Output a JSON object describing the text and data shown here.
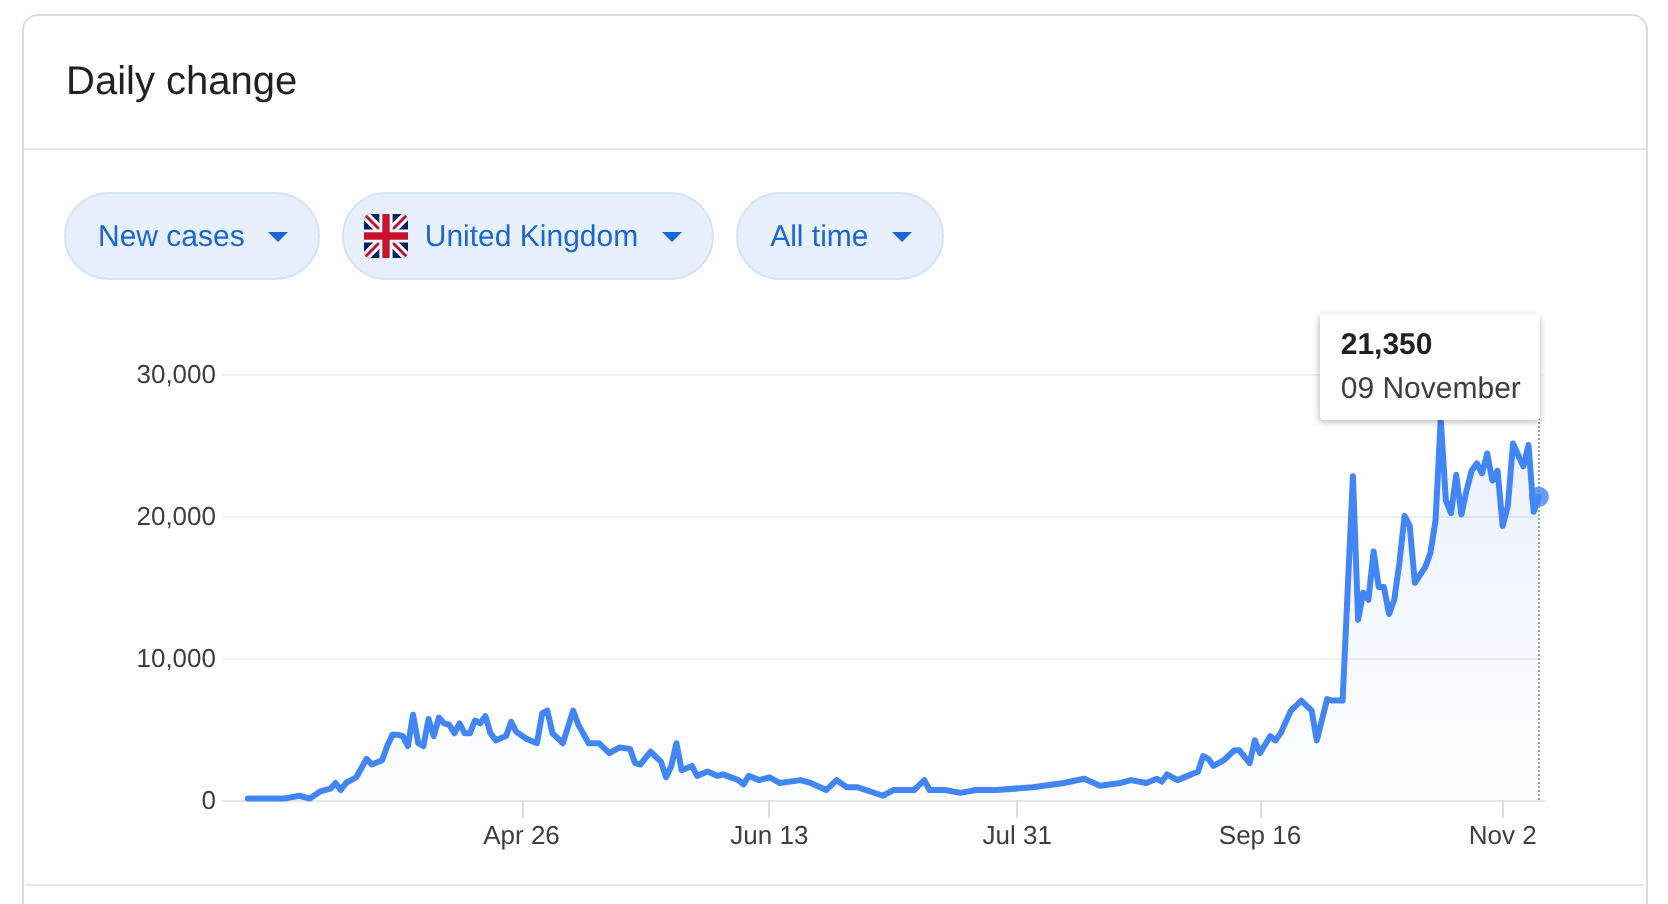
{
  "chart_data": {
    "type": "area",
    "title": "Daily change",
    "annotations": [
      "New cases",
      "United Kingdom",
      "All time",
      "21,350",
      "09 November"
    ],
    "xlim": [
      "--02-28",
      "--11-10"
    ],
    "xticks": [
      {
        "value": "--04-26",
        "label": "Apr 26"
      },
      {
        "value": "--06-13",
        "label": "Jun 13"
      },
      {
        "value": "--07-31",
        "label": "Jul 31"
      },
      {
        "value": "--09-16",
        "label": "Sep 16"
      },
      {
        "value": "--11-02",
        "label": "Nov 2"
      }
    ],
    "ylim": [
      0,
      30000
    ],
    "yticks": [
      0,
      {
        "value": 10000,
        "label": "10,000"
      },
      {
        "value": 20000,
        "label": "20,000"
      },
      {
        "value": 30000,
        "label": "30,000"
      }
    ],
    "grid": "y",
    "marker": "none",
    "line_style": "solid",
    "ref_lines": [
      {
        "axis": "x",
        "value": "--11-09",
        "color": "#9e9e9e",
        "line_style": "dotted"
      }
    ],
    "series": [
      {
        "color": "#4285f4",
        "x": [
          "--03-04",
          "--03-11",
          "--03-14",
          "--03-16",
          "--03-18",
          "--03-20",
          "--03-21",
          "--03-22",
          "--03-23",
          "--03-25",
          "--03-27",
          "--03-28",
          "--03-30",
          "--03-31",
          "--04-01",
          "--04-02",
          "--04-03",
          "--04-04",
          "--04-05",
          "--04-06",
          "--04-07",
          "--04-08",
          "--04-09",
          "--04-10",
          "--04-11",
          "--04-12",
          "--04-13",
          "--04-14",
          "--04-15",
          "--04-16",
          "--04-17",
          "--04-18",
          "--04-19",
          "--04-20",
          "--04-21",
          "--04-23",
          "--04-24",
          "--04-25",
          "--04-27",
          "--04-29",
          "--04-30",
          "--05-01",
          "--05-02",
          "--05-04",
          "--05-06",
          "--05-07",
          "--05-09",
          "--05-11",
          "--05-13",
          "--05-15",
          "--05-17",
          "--05-18",
          "--05-19",
          "--05-21",
          "--05-23",
          "--05-24",
          "--05-25",
          "--05-26",
          "--05-27",
          "--05-29",
          "--05-30",
          "--06-01",
          "--06-03",
          "--06-04",
          "--06-07",
          "--06-08",
          "--06-09",
          "--06-11",
          "--06-13",
          "--06-15",
          "--06-19",
          "--06-21",
          "--06-24",
          "--06-26",
          "--06-28",
          "--06-30",
          "--07-05",
          "--07-07",
          "--07-11",
          "--07-13",
          "--07-14",
          "--07-17",
          "--07-20",
          "--07-23",
          "--07-27",
          "--08-03",
          "--08-09",
          "--08-13",
          "--08-16",
          "--08-20",
          "--08-22",
          "--08-25",
          "--08-27",
          "--08-28",
          "--08-29",
          "--08-31",
          "--09-02",
          "--09-04",
          "--09-05",
          "--09-06",
          "--09-07",
          "--09-09",
          "--09-11",
          "--09-12",
          "--09-14",
          "--09-15",
          "--09-16",
          "--09-18",
          "--09-19",
          "--09-20",
          "--09-22",
          "--09-24",
          "--09-26",
          "--09-27",
          "--09-29",
          "--09-30",
          "--10-02",
          "--10-04",
          "--10-05",
          "--10-06",
          "--10-07",
          "--10-08",
          "--10-09",
          "--10-10",
          "--10-11",
          "--10-12",
          "--10-13",
          "--10-14",
          "--10-15",
          "--10-16",
          "--10-18",
          "--10-19",
          "--10-20",
          "--10-21",
          "--10-22",
          "--10-23",
          "--10-24",
          "--10-25",
          "--10-26",
          "--10-27",
          "--10-28",
          "--10-29",
          "--10-30",
          "--10-31",
          "--11-01",
          "--11-02",
          "--11-03",
          "--11-04",
          "--11-05",
          "--11-06",
          "--11-07",
          "--11-08",
          "--11-09"
        ],
        "values": [
          100,
          100,
          300,
          100,
          600,
          800,
          1200,
          700,
          1200,
          1600,
          2900,
          2500,
          2800,
          3800,
          4600,
          4600,
          4500,
          3800,
          6000,
          4000,
          3800,
          5700,
          4500,
          5800,
          5400,
          5300,
          4700,
          5400,
          4700,
          4700,
          5600,
          5400,
          5900,
          4700,
          4200,
          4500,
          5500,
          4800,
          4300,
          4000,
          6100,
          6300,
          4700,
          4000,
          6300,
          5300,
          4000,
          4000,
          3300,
          3700,
          3600,
          2600,
          2500,
          3400,
          2700,
          1600,
          2400,
          4000,
          2100,
          2400,
          1700,
          2000,
          1700,
          1800,
          1400,
          1100,
          1700,
          1400,
          1600,
          1200,
          1400,
          1200,
          700,
          1400,
          900,
          900,
          300,
          700,
          700,
          1400,
          700,
          700,
          500,
          700,
          700,
          900,
          1200,
          1500,
          1000,
          1200,
          1400,
          1200,
          1500,
          1300,
          1800,
          1400,
          1700,
          2000,
          3100,
          2900,
          2400,
          2800,
          3500,
          3500,
          2600,
          4200,
          3300,
          4500,
          4200,
          4700,
          6300,
          7000,
          6300,
          4200,
          7100,
          7000,
          7000,
          22800,
          12700,
          14600,
          14100,
          17500,
          15000,
          15000,
          13100,
          14100,
          16700,
          20000,
          19300,
          15300,
          16400,
          17400,
          19700,
          26800,
          21100,
          20200,
          22900,
          20100,
          21800,
          23200,
          23700,
          23000,
          24400,
          22500,
          23200,
          19300,
          20700,
          25100,
          24300,
          23500,
          25000,
          20300,
          21350
        ]
      },
      {
        "type": "scatter",
        "marker": "circle",
        "color": "#4285f4",
        "x": [
          "--11-09"
        ],
        "values": [
          21350
        ]
      }
    ]
  }
}
